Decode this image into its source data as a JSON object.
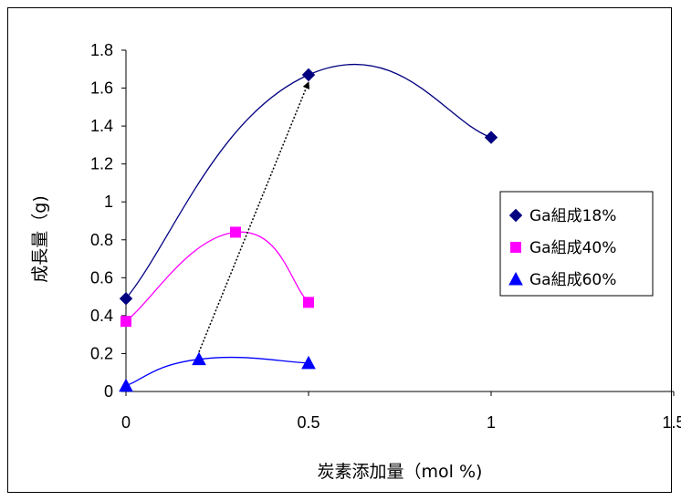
{
  "chart_data": {
    "type": "scatter",
    "title": "",
    "xlabel": "炭素添加量（mol %)",
    "ylabel": "成長量（g)",
    "xlim": [
      0,
      1.5
    ],
    "ylim": [
      0,
      1.8
    ],
    "x_ticks": [
      "0",
      "0.5",
      "1",
      "1.5"
    ],
    "y_ticks": [
      "0",
      "0.2",
      "0.4",
      "0.6",
      "0.8",
      "1",
      "1.2",
      "1.4",
      "1.6",
      "1.8"
    ],
    "grid": false,
    "legend_position": "right",
    "series": [
      {
        "name": "Ga組成18%",
        "marker": "diamond",
        "color": "#000080",
        "line_color": "#000080",
        "x": [
          0,
          0.5,
          1
        ],
        "y": [
          0.49,
          1.67,
          1.34
        ]
      },
      {
        "name": "Ga組成40%",
        "marker": "square",
        "color": "#FF00FF",
        "line_color": "#FF00FF",
        "x": [
          0,
          0.3,
          0.5
        ],
        "y": [
          0.37,
          0.84,
          0.47
        ]
      },
      {
        "name": "Ga組成60%",
        "marker": "triangle",
        "color": "#0000FF",
        "line_color": "#0000FF",
        "x": [
          0,
          0.2,
          0.5
        ],
        "y": [
          0.03,
          0.17,
          0.15
        ]
      }
    ],
    "annotations": [
      {
        "type": "dotted-arrow",
        "from": [
          0.2,
          0.17
        ],
        "to": [
          0.5,
          1.67
        ],
        "color": "#000000"
      }
    ]
  }
}
